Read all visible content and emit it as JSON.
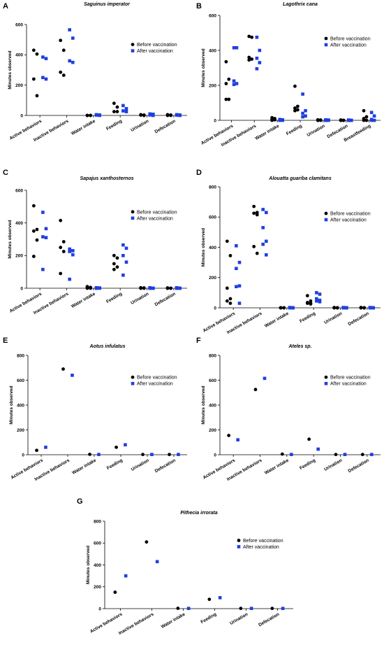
{
  "chart_data": [
    {
      "type": "scatter",
      "label": "A",
      "title": "Saguinus imperator",
      "y_label": "Minutes observed",
      "categories": [
        "Active behaviors",
        "Inactive behaviors",
        "Water intake",
        "Feeding",
        "Urination",
        "Defecation"
      ],
      "ylim": [
        0,
        600
      ],
      "yticks": [
        0,
        200,
        400,
        600
      ],
      "legend": "upper right",
      "series": [
        {
          "name": "Before vaccination",
          "color": "#000000",
          "marker": "circle",
          "values": [
            [
              430,
              405,
              240,
              130
            ],
            [
              495,
              430,
              285,
              265
            ],
            [
              0,
              0,
              0,
              0
            ],
            [
              80,
              55,
              25,
              25
            ],
            [
              5,
              3,
              2,
              0
            ],
            [
              5,
              3,
              0,
              0
            ]
          ]
        },
        {
          "name": "After vaccination",
          "color": "#1f3fe0",
          "marker": "square",
          "values": [
            [
              385,
              375,
              250,
              240
            ],
            [
              565,
              510,
              360,
              350
            ],
            [
              5,
              3,
              2,
              0
            ],
            [
              65,
              45,
              30,
              25
            ],
            [
              10,
              8,
              3,
              0
            ],
            [
              5,
              3,
              2,
              0
            ]
          ]
        }
      ]
    },
    {
      "type": "scatter",
      "label": "B",
      "title": "Lagothrix cana",
      "y_label": "Minutes observed",
      "categories": [
        "Active behaviors",
        "Inactive behaviors",
        "Water intake",
        "Feeding",
        "Urination",
        "Defecation",
        "Breastfeeding"
      ],
      "ylim": [
        0,
        600
      ],
      "yticks": [
        0,
        200,
        400,
        600
      ],
      "legend": "upper right",
      "series": [
        {
          "name": "Before vaccination",
          "color": "#000000",
          "marker": "circle",
          "values": [
            [
              335,
              235,
              210,
              120,
              120
            ],
            [
              480,
              475,
              360,
              350,
              345
            ],
            [
              15,
              10,
              5,
              3,
              0
            ],
            [
              195,
              80,
              70,
              60,
              55
            ],
            [
              3,
              2,
              0,
              0,
              0
            ],
            [
              2,
              0,
              0,
              0,
              0
            ],
            [
              55,
              20,
              10,
              0,
              0
            ]
          ]
        },
        {
          "name": "After vaccination",
          "color": "#1f3fe0",
          "marker": "square",
          "values": [
            [
              415,
              415,
              225,
              210,
              205
            ],
            [
              475,
              400,
              355,
              330,
              295
            ],
            [
              5,
              3,
              2,
              0,
              0
            ],
            [
              150,
              55,
              40,
              25,
              20
            ],
            [
              3,
              2,
              0,
              0,
              0
            ],
            [
              2,
              0,
              0,
              0,
              0
            ],
            [
              45,
              25,
              5,
              0,
              0
            ]
          ]
        }
      ]
    },
    {
      "type": "scatter",
      "label": "C",
      "title": "Sapajus xanthosternos",
      "y_label": "Minutes observed",
      "categories": [
        "Active behaviors",
        "Inactive behaviors",
        "Water intake",
        "Feeding",
        "Urination",
        "Defecation"
      ],
      "ylim": [
        0,
        600
      ],
      "yticks": [
        0,
        200,
        400,
        600
      ],
      "legend": "upper right",
      "series": [
        {
          "name": "Before vaccination",
          "color": "#000000",
          "marker": "circle",
          "values": [
            [
              505,
              360,
              350,
              295,
              195
            ],
            [
              415,
              285,
              250,
              225,
              90
            ],
            [
              10,
              5,
              3,
              0,
              0
            ],
            [
              200,
              185,
              150,
              130,
              115
            ],
            [
              3,
              2,
              0,
              0,
              0
            ],
            [
              2,
              0,
              0,
              0,
              0
            ]
          ]
        },
        {
          "name": "After vaccination",
          "color": "#1f3fe0",
          "marker": "square",
          "values": [
            [
              465,
              365,
              315,
              310,
              115
            ],
            [
              240,
              230,
              225,
              205,
              55
            ],
            [
              3,
              2,
              0,
              0,
              0
            ],
            [
              265,
              245,
              200,
              160,
              80
            ],
            [
              3,
              0,
              0,
              0,
              0
            ],
            [
              3,
              0,
              0,
              0,
              0
            ]
          ]
        }
      ]
    },
    {
      "type": "scatter",
      "label": "D",
      "title": "Alouatta guariba clamitans",
      "y_label": "Minutes observed",
      "categories": [
        "Active behaviors",
        "Inactive behaviors",
        "Water intake",
        "Feeding",
        "Urination",
        "Defecation"
      ],
      "ylim": [
        0,
        800
      ],
      "yticks": [
        0,
        200,
        400,
        600,
        800
      ],
      "legend": "upper right",
      "series": [
        {
          "name": "Before vaccination",
          "color": "#000000",
          "marker": "circle",
          "values": [
            [
              440,
              345,
              130,
              60,
              45,
              30
            ],
            [
              670,
              630,
              625,
              615,
              405,
              360
            ],
            [
              0,
              0,
              0,
              0,
              0,
              0
            ],
            [
              80,
              45,
              35,
              30,
              30,
              25
            ],
            [
              2,
              0,
              0,
              0,
              0,
              0
            ],
            [
              2,
              0,
              0,
              0,
              0,
              0
            ]
          ]
        },
        {
          "name": "After vaccination",
          "color": "#1f3fe0",
          "marker": "square",
          "values": [
            [
              410,
              300,
              260,
              145,
              140,
              30
            ],
            [
              650,
              630,
              530,
              440,
              420,
              350
            ],
            [
              2,
              0,
              0,
              0,
              0,
              0
            ],
            [
              100,
              90,
              60,
              50,
              45,
              40
            ],
            [
              2,
              0,
              0,
              0,
              0,
              0
            ],
            [
              2,
              0,
              0,
              0,
              0,
              0
            ]
          ]
        }
      ]
    },
    {
      "type": "scatter",
      "label": "E",
      "title": "Aotus infulatus",
      "y_label": "Minutes observed",
      "categories": [
        "Active behaviors",
        "Inactive behaviors",
        "Water intake",
        "Feeding",
        "Urination",
        "Defecation"
      ],
      "ylim": [
        0,
        800
      ],
      "yticks": [
        0,
        200,
        400,
        600,
        800
      ],
      "legend": "upper right",
      "series": [
        {
          "name": "Before vaccination",
          "color": "#000000",
          "marker": "circle",
          "values": [
            [
              35
            ],
            [
              690
            ],
            [
              3
            ],
            [
              60
            ],
            [
              2
            ],
            [
              2
            ]
          ]
        },
        {
          "name": "After vaccination",
          "color": "#1f3fe0",
          "marker": "square",
          "values": [
            [
              60
            ],
            [
              640
            ],
            [
              2
            ],
            [
              80
            ],
            [
              2
            ],
            [
              2
            ]
          ]
        }
      ]
    },
    {
      "type": "scatter",
      "label": "F",
      "title": "Ateles sp.",
      "y_label": "Minutes observed",
      "categories": [
        "Active behaviors",
        "Inactive behaviors",
        "Water intake",
        "Feeding",
        "Urination",
        "Defecation"
      ],
      "ylim": [
        0,
        800
      ],
      "yticks": [
        0,
        200,
        400,
        600,
        800
      ],
      "legend": "upper right",
      "series": [
        {
          "name": "Before vaccination",
          "color": "#000000",
          "marker": "circle",
          "values": [
            [
              155
            ],
            [
              525
            ],
            [
              5
            ],
            [
              125
            ],
            [
              2
            ],
            [
              2
            ]
          ]
        },
        {
          "name": "After vaccination",
          "color": "#1f3fe0",
          "marker": "square",
          "values": [
            [
              120
            ],
            [
              615
            ],
            [
              2
            ],
            [
              45
            ],
            [
              2
            ],
            [
              2
            ]
          ]
        }
      ]
    },
    {
      "type": "scatter",
      "label": "G",
      "title": "Pithecia irrorata",
      "y_label": "Minutes observed",
      "categories": [
        "Active behaviors",
        "Inactive behaviors",
        "Water intake",
        "Feeding",
        "Urination",
        "Defecation"
      ],
      "ylim": [
        0,
        800
      ],
      "yticks": [
        0,
        200,
        400,
        600,
        800
      ],
      "legend": "upper right",
      "series": [
        {
          "name": "Before vaccination",
          "color": "#000000",
          "marker": "circle",
          "values": [
            [
              150
            ],
            [
              610
            ],
            [
              3
            ],
            [
              85
            ],
            [
              2
            ],
            [
              2
            ]
          ]
        },
        {
          "name": "After vaccination",
          "color": "#1f3fe0",
          "marker": "square",
          "values": [
            [
              300
            ],
            [
              430
            ],
            [
              2
            ],
            [
              100
            ],
            [
              2
            ],
            [
              2
            ]
          ]
        }
      ]
    }
  ]
}
